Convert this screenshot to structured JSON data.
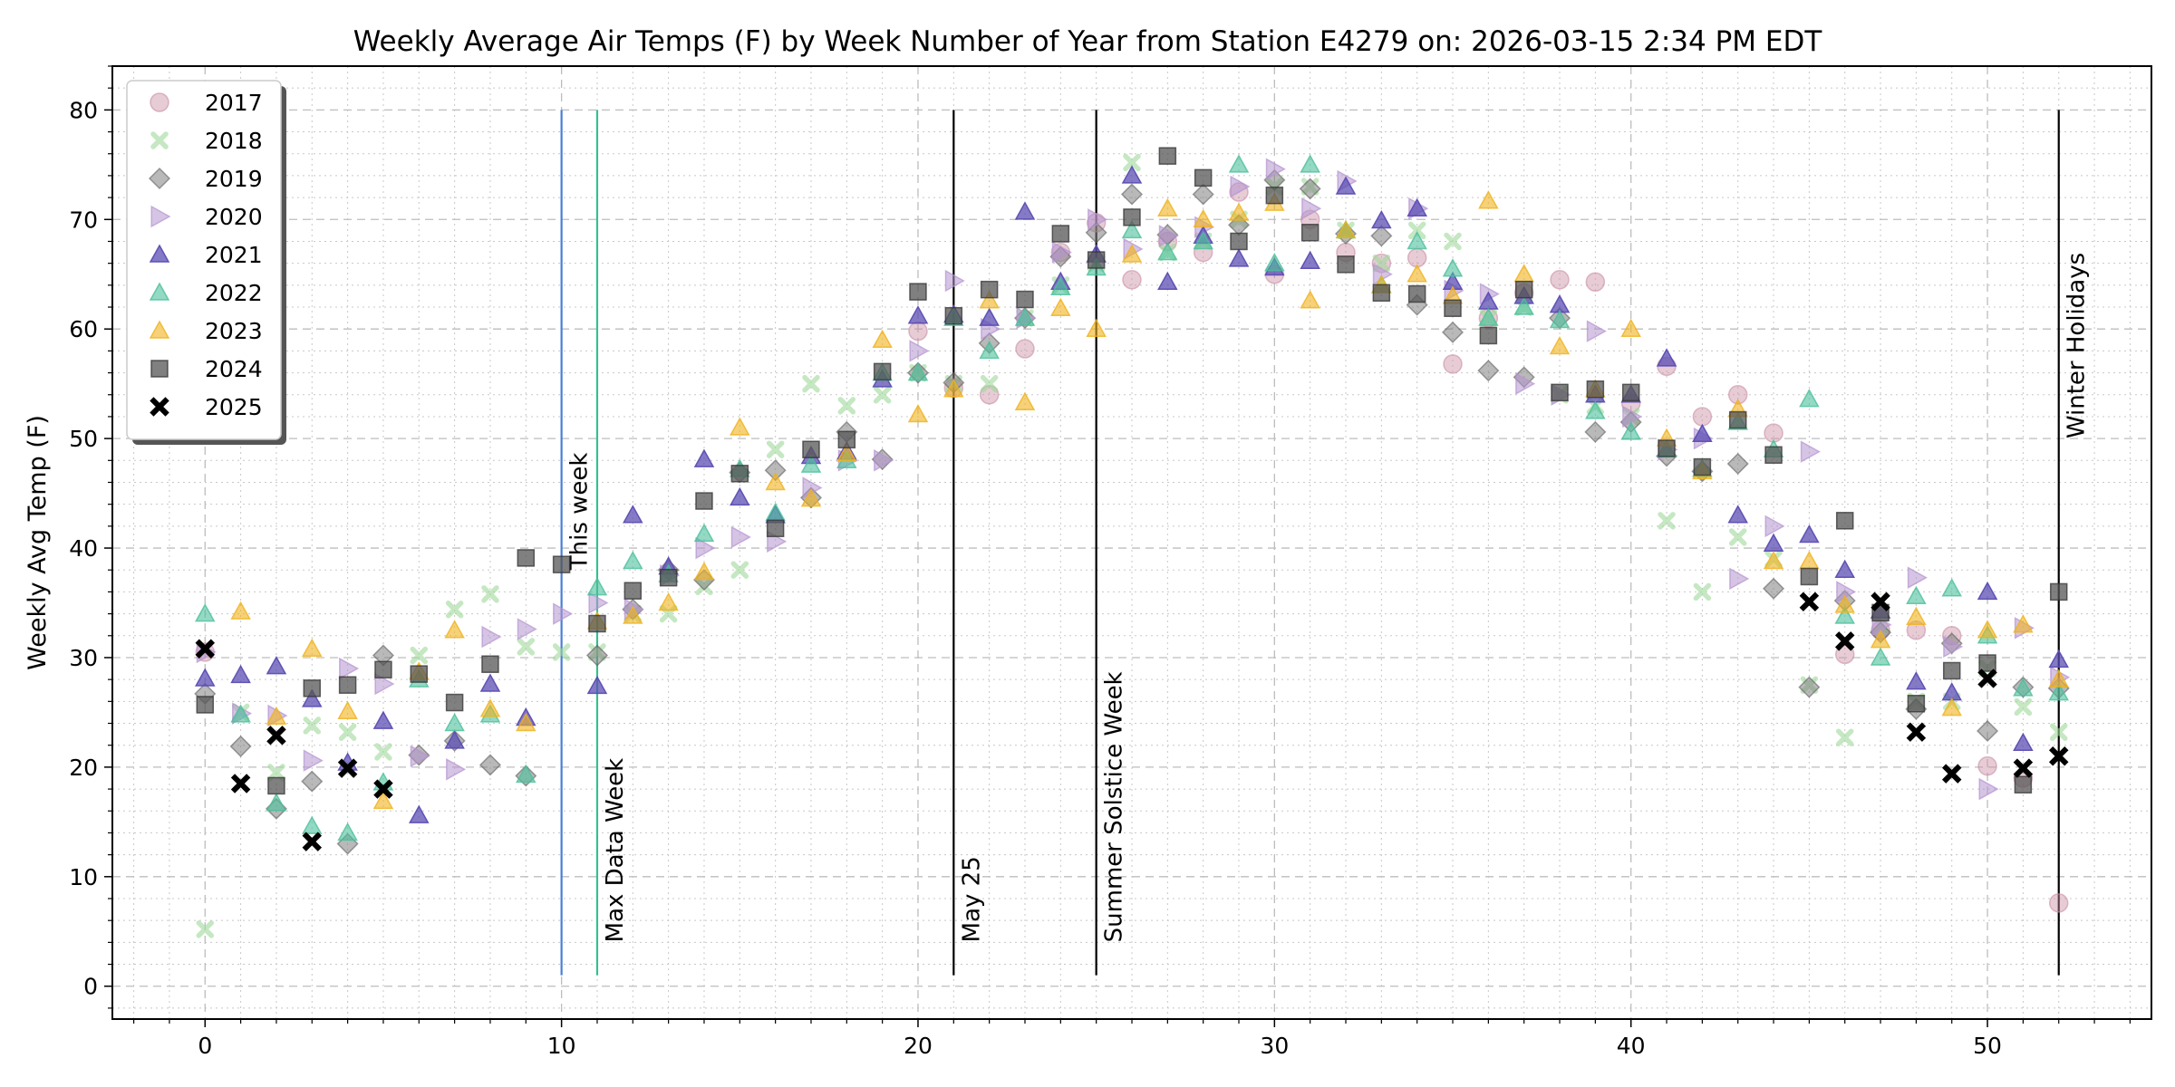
{
  "chart_data": {
    "type": "scatter",
    "title": "Weekly Average Air Temps (F) by Week Number of Year from Station E4279 on: 2026-03-15 2:34 PM EDT",
    "xlabel": "",
    "ylabel": "Weekly Avg Temp (F)",
    "xlim": [
      -2.6,
      54.6
    ],
    "ylim": [
      -3,
      84
    ],
    "xticks": [
      0,
      10,
      20,
      30,
      40,
      50
    ],
    "yticks": [
      0,
      10,
      20,
      30,
      40,
      50,
      60,
      70,
      80
    ],
    "grid": true,
    "legend_position": "top-left",
    "vlines": [
      {
        "x": 10,
        "label": "This week",
        "color": "#4a7fd6",
        "label_y": 38,
        "label_side": "right"
      },
      {
        "x": 11,
        "label": "Max Data Week",
        "color": "#36c08f",
        "label_y": 4,
        "label_side": "right"
      },
      {
        "x": 21,
        "label": "May 25",
        "color": "#000000",
        "label_y": 4,
        "label_side": "right"
      },
      {
        "x": 25,
        "label": "Summer Solstice Week",
        "color": "#000000",
        "label_y": 4,
        "label_side": "right"
      },
      {
        "x": 52,
        "label": "Winter Holidays",
        "color": "#000000",
        "label_y": 50,
        "label_side": "right"
      }
    ],
    "series": [
      {
        "name": "2017",
        "marker": "circle",
        "color": "#c98da4",
        "alpha": 0.45,
        "x": [
          0,
          20,
          21,
          22,
          23,
          24,
          25,
          26,
          27,
          28,
          29,
          30,
          31,
          32,
          33,
          34,
          35,
          36,
          37,
          38,
          39,
          40,
          41,
          42,
          43,
          44,
          46,
          47,
          48,
          49,
          50,
          51,
          52
        ],
        "y": [
          30.5,
          59.8,
          54.6,
          54,
          58.2,
          67,
          69.7,
          64.5,
          68,
          67,
          72.5,
          65,
          70,
          67,
          66,
          66.5,
          56.8,
          61,
          63.3,
          64.5,
          64.3,
          53.2,
          56.6,
          52,
          54,
          50.5,
          30.3,
          32.5,
          32.5,
          32,
          20.1,
          19,
          7.6
        ]
      },
      {
        "name": "2018",
        "marker": "x",
        "color": "#9fd89a",
        "alpha": 0.6,
        "x": [
          0,
          1,
          2,
          3,
          4,
          5,
          6,
          7,
          8,
          9,
          10,
          11,
          12,
          13,
          14,
          15,
          16,
          17,
          18,
          19,
          20,
          21,
          22,
          23,
          24,
          25,
          26,
          27,
          28,
          29,
          30,
          31,
          32,
          33,
          34,
          35,
          36,
          37,
          38,
          39,
          40,
          41,
          42,
          43,
          44,
          45,
          46,
          47,
          48,
          49,
          50,
          51,
          52
        ],
        "y": [
          5.2,
          25,
          19.5,
          23.8,
          23.2,
          21.4,
          30.2,
          34.4,
          35.8,
          31,
          30.5,
          30.5,
          34,
          34,
          36.5,
          38,
          49,
          55,
          53,
          54,
          56,
          55,
          55,
          61,
          64,
          66,
          75.2,
          67,
          68,
          70,
          73,
          73,
          69,
          66,
          69,
          68,
          61,
          62,
          54,
          53,
          52,
          42.5,
          36,
          41,
          39,
          27.5,
          22.7,
          33,
          26,
          26,
          29,
          25.5,
          23.2
        ]
      },
      {
        "name": "2019",
        "marker": "diamond",
        "color": "#7f7f7f",
        "alpha": 0.55,
        "x": [
          0,
          1,
          2,
          3,
          4,
          5,
          6,
          7,
          8,
          9,
          11,
          12,
          13,
          14,
          15,
          16,
          17,
          18,
          19,
          20,
          21,
          22,
          23,
          24,
          25,
          26,
          27,
          28,
          29,
          30,
          31,
          32,
          33,
          34,
          35,
          36,
          37,
          38,
          39,
          40,
          41,
          42,
          43,
          44,
          45,
          46,
          47,
          48,
          49,
          50,
          51,
          52
        ],
        "y": [
          26.7,
          21.9,
          16.2,
          18.7,
          13,
          30.2,
          21.1,
          22.4,
          20.2,
          19.2,
          30.2,
          34.4,
          38,
          37.1,
          46.9,
          47.1,
          44.6,
          50.6,
          48.1,
          56,
          55.1,
          58.7,
          61,
          66.6,
          68.8,
          72.3,
          68.6,
          72.3,
          69.5,
          73.6,
          72.8,
          68.7,
          68.5,
          62.2,
          59.7,
          56.2,
          55.6,
          61,
          50.6,
          51.5,
          48.4,
          47,
          47.7,
          36.3,
          27.3,
          35.2,
          32.3,
          25.3,
          31.3,
          23.3,
          27.3,
          27.2
        ]
      },
      {
        "name": "2020",
        "marker": "triangle-right",
        "color": "#b594d0",
        "alpha": 0.55,
        "x": [
          0,
          1,
          2,
          3,
          4,
          5,
          6,
          7,
          8,
          9,
          10,
          11,
          12,
          13,
          14,
          15,
          16,
          17,
          18,
          19,
          20,
          21,
          22,
          23,
          24,
          25,
          26,
          27,
          28,
          29,
          30,
          31,
          32,
          33,
          34,
          35,
          36,
          37,
          38,
          39,
          40,
          41,
          42,
          43,
          44,
          45,
          46,
          47,
          48,
          49,
          50,
          51,
          52
        ],
        "y": [
          30.5,
          24.9,
          24.7,
          20.6,
          29,
          27.6,
          21,
          19.8,
          31.9,
          32.6,
          34,
          35,
          34.4,
          37.5,
          40,
          41,
          40.6,
          45.5,
          48,
          48,
          58,
          64.4,
          60,
          61,
          67,
          70,
          67.3,
          68.5,
          69.3,
          73,
          74.6,
          71,
          73.5,
          65,
          71,
          63.5,
          63.2,
          55,
          54,
          59.8,
          52,
          49,
          50,
          37.2,
          42,
          48.8,
          36,
          33,
          37.3,
          31,
          18,
          32.7,
          28.2
        ]
      },
      {
        "name": "2021",
        "marker": "triangle-up",
        "color": "#5b4db3",
        "alpha": 0.75,
        "x": [
          0,
          1,
          2,
          3,
          4,
          5,
          6,
          7,
          8,
          9,
          11,
          12,
          13,
          14,
          15,
          16,
          17,
          18,
          19,
          20,
          21,
          22,
          23,
          24,
          25,
          26,
          27,
          28,
          29,
          30,
          31,
          32,
          33,
          34,
          35,
          36,
          37,
          38,
          39,
          40,
          41,
          42,
          43,
          44,
          45,
          46,
          47,
          48,
          49,
          50,
          51,
          52
        ],
        "y": [
          28.1,
          28.4,
          29.2,
          26.2,
          20.4,
          24.2,
          15.6,
          22.4,
          27.6,
          24.5,
          27.4,
          43,
          38.3,
          48.1,
          44.6,
          43,
          48.4,
          48.8,
          55.4,
          61.2,
          61.3,
          61,
          70.7,
          64.3,
          66.8,
          74,
          64.3,
          68.5,
          66.4,
          65.6,
          66.2,
          73,
          69.9,
          71,
          64.3,
          62.5,
          63,
          62.2,
          54,
          54,
          57.3,
          50.4,
          43,
          40.4,
          41.2,
          38,
          34.3,
          27.8,
          26.8,
          36,
          22.2,
          29.8
        ]
      },
      {
        "name": "2022",
        "marker": "triangle-up",
        "color": "#4bbf9b",
        "alpha": 0.6,
        "x": [
          0,
          1,
          2,
          3,
          4,
          5,
          6,
          7,
          8,
          9,
          11,
          12,
          13,
          14,
          15,
          16,
          17,
          18,
          19,
          20,
          21,
          22,
          23,
          24,
          25,
          26,
          27,
          28,
          29,
          30,
          31,
          32,
          33,
          34,
          35,
          36,
          37,
          38,
          39,
          40,
          41,
          42,
          43,
          44,
          45,
          46,
          47,
          48,
          49,
          50,
          51,
          52
        ],
        "y": [
          34,
          24.8,
          16.7,
          14.6,
          14,
          18.6,
          28,
          24,
          24.8,
          19.3,
          36.4,
          38.8,
          37.6,
          41.3,
          47.2,
          43.2,
          47.6,
          48,
          56,
          56,
          61,
          58,
          61,
          63.8,
          65.6,
          69,
          67,
          68,
          75,
          66,
          75,
          69,
          64,
          68,
          65.5,
          61,
          62,
          60.8,
          52.5,
          50.6,
          49,
          47.2,
          51.5,
          49,
          53.6,
          33.8,
          30,
          35.6,
          36.3,
          32,
          27.2,
          26.8
        ]
      },
      {
        "name": "2023",
        "marker": "triangle-up",
        "color": "#f0b21c",
        "alpha": 0.6,
        "x": [
          1,
          2,
          3,
          4,
          5,
          6,
          7,
          8,
          9,
          11,
          12,
          13,
          14,
          15,
          16,
          17,
          18,
          19,
          20,
          21,
          22,
          23,
          24,
          25,
          26,
          27,
          28,
          29,
          30,
          31,
          32,
          33,
          34,
          35,
          36,
          37,
          38,
          39,
          40,
          41,
          42,
          43,
          44,
          45,
          46,
          47,
          48,
          49,
          50,
          51,
          52
        ],
        "y": [
          34.2,
          24.6,
          30.8,
          25.1,
          16.9,
          28.7,
          32.5,
          25.3,
          24,
          33.3,
          33.8,
          35,
          37.8,
          51,
          46,
          44.5,
          48.6,
          59,
          52.2,
          54.5,
          62.6,
          53.3,
          61.9,
          60,
          66.8,
          71,
          70,
          70.6,
          71.5,
          62.6,
          69,
          64,
          65,
          63,
          71.7,
          65,
          58.4,
          54.5,
          60,
          50,
          47,
          52.7,
          38.8,
          38.8,
          34.8,
          31.6,
          33.7,
          25.4,
          32.5,
          33,
          28
        ]
      },
      {
        "name": "2024",
        "marker": "square",
        "color": "#555555",
        "alpha": 0.75,
        "x": [
          0,
          2,
          3,
          4,
          5,
          6,
          7,
          8,
          9,
          10,
          11,
          12,
          13,
          14,
          15,
          16,
          17,
          18,
          19,
          20,
          21,
          22,
          23,
          24,
          25,
          26,
          27,
          28,
          29,
          30,
          31,
          32,
          33,
          34,
          35,
          36,
          37,
          38,
          39,
          40,
          41,
          42,
          43,
          44,
          45,
          46,
          47,
          48,
          49,
          50,
          51,
          52
        ],
        "y": [
          25.7,
          18.3,
          27.2,
          27.5,
          28.9,
          28.5,
          25.9,
          29.4,
          39.1,
          38.5,
          33.1,
          36.1,
          37.3,
          44.3,
          46.8,
          41.8,
          49,
          49.9,
          56.1,
          63.4,
          61.2,
          63.6,
          62.7,
          68.7,
          66.3,
          70.2,
          75.8,
          73.8,
          68,
          72.2,
          68.8,
          65.9,
          63.3,
          63.2,
          61.9,
          59.4,
          63.6,
          54.2,
          54.5,
          54.2,
          49.1,
          47.4,
          51.7,
          48.5,
          37.4,
          42.5,
          34.1,
          25.8,
          28.8,
          29.5,
          18.4,
          36
        ]
      },
      {
        "name": "2025",
        "marker": "x-bold",
        "color": "#000000",
        "alpha": 1,
        "x": [
          0,
          1,
          2,
          3,
          4,
          5,
          45,
          46,
          47,
          48,
          49,
          50,
          51,
          52
        ],
        "y": [
          30.8,
          18.5,
          22.9,
          13.2,
          19.9,
          18,
          35.1,
          31.5,
          35.1,
          23.2,
          19.4,
          28.1,
          19.9,
          21
        ]
      }
    ]
  }
}
